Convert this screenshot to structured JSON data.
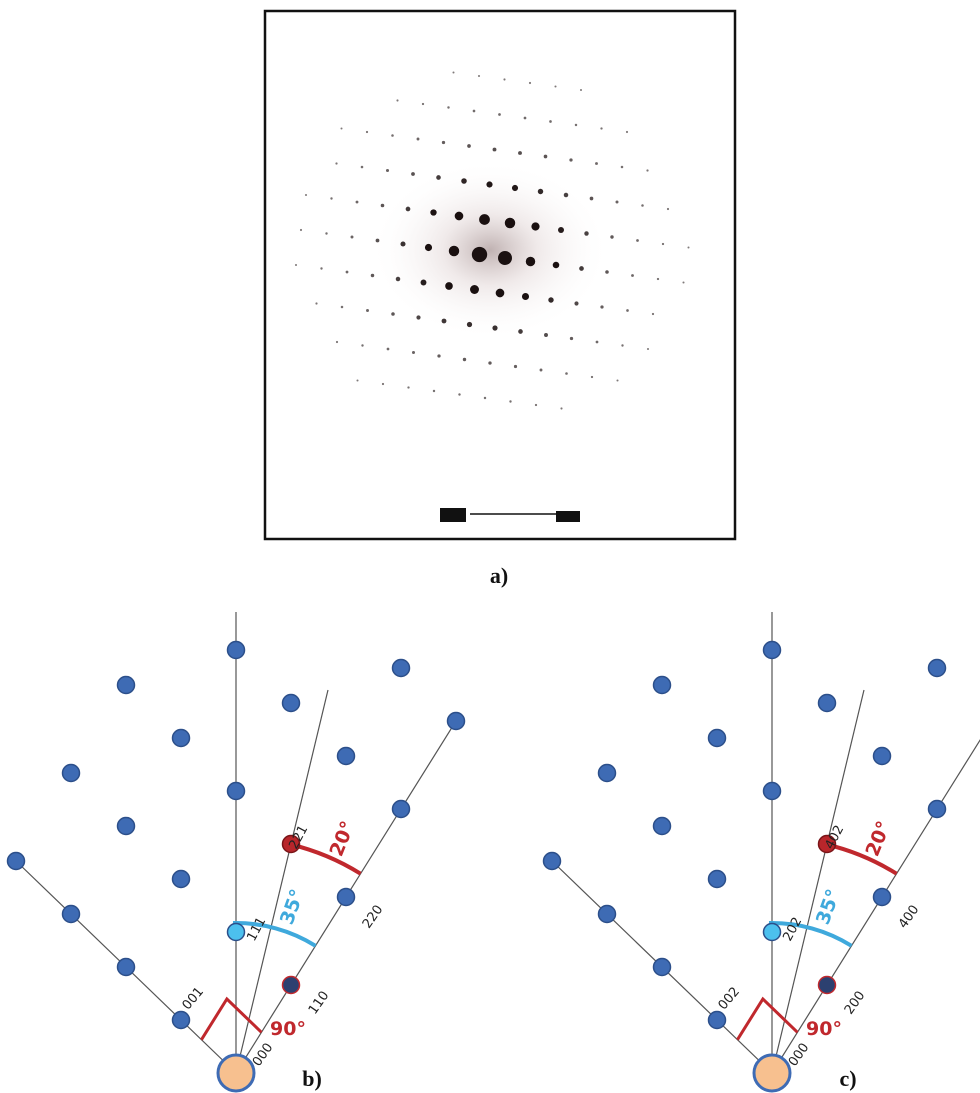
{
  "panel_a": {
    "label": "a)"
  },
  "panel_b": {
    "label": "b)",
    "spots": [
      "000",
      "001",
      "111",
      "221",
      "110",
      "220"
    ],
    "angles": [
      "90°",
      "35°",
      "20°"
    ]
  },
  "panel_c": {
    "label": "c)",
    "spots": [
      "000",
      "002",
      "202",
      "402",
      "200",
      "400"
    ],
    "angles": [
      "90°",
      "35°",
      "20°"
    ]
  }
}
